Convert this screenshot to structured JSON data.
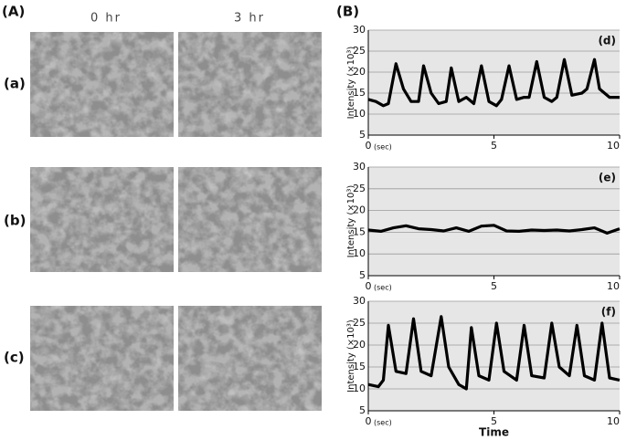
{
  "panel_a": {
    "label": "(A)",
    "columns": [
      "0 hr",
      "3 hr"
    ],
    "rows": [
      "(a)",
      "(b)",
      "(c)"
    ]
  },
  "panel_b_label": "(B)",
  "chart_data": [
    {
      "type": "line",
      "panel_label": "(d)",
      "ylabel": "Intensity (×10³)",
      "x_unit": "(sec)",
      "xlim": [
        0,
        10
      ],
      "xticks": [
        0,
        5,
        10
      ],
      "ylim": [
        5,
        30
      ],
      "yticks": [
        5,
        10,
        15,
        20,
        25,
        30
      ],
      "grid": true,
      "color": "#000000",
      "x": [
        0,
        0.3,
        0.6,
        0.8,
        1.1,
        1.4,
        1.7,
        2.0,
        2.2,
        2.5,
        2.8,
        3.1,
        3.3,
        3.6,
        3.9,
        4.2,
        4.5,
        4.8,
        5.1,
        5.3,
        5.6,
        5.9,
        6.2,
        6.4,
        6.7,
        7.0,
        7.3,
        7.5,
        7.8,
        8.1,
        8.5,
        8.7,
        9.0,
        9.2,
        9.6,
        10
      ],
      "values": [
        13.5,
        13,
        12,
        12.5,
        22,
        16,
        13,
        13,
        21.5,
        15,
        12.5,
        13,
        21,
        13,
        14,
        12.5,
        21.5,
        13,
        12,
        13.5,
        21.5,
        13.5,
        14,
        14,
        22.5,
        14,
        13,
        14,
        23,
        14.5,
        15,
        16,
        23,
        16,
        14,
        14
      ]
    },
    {
      "type": "line",
      "panel_label": "(e)",
      "ylabel": "Intensity (×10³)",
      "x_unit": "(sec)",
      "xlim": [
        0,
        10
      ],
      "xticks": [
        0,
        5,
        10
      ],
      "ylim": [
        5,
        30
      ],
      "yticks": [
        5,
        10,
        15,
        20,
        25,
        30
      ],
      "grid": true,
      "color": "#000000",
      "x": [
        0,
        0.5,
        1,
        1.5,
        2,
        2.5,
        3,
        3.5,
        4,
        4.5,
        5,
        5.5,
        6,
        6.5,
        7,
        7.5,
        8,
        8.5,
        9,
        9.5,
        10
      ],
      "values": [
        15.5,
        15.2,
        16,
        16.5,
        15.8,
        15.6,
        15.3,
        16,
        15.2,
        16.4,
        16.6,
        15.3,
        15.2,
        15.5,
        15.4,
        15.5,
        15.3,
        15.6,
        16,
        14.8,
        15.8
      ]
    },
    {
      "type": "line",
      "panel_label": "(f)",
      "ylabel": "Intensity (×10³)",
      "x_unit": "(sec)",
      "xlabel": "Time",
      "xlim": [
        0,
        10
      ],
      "xticks": [
        0,
        5,
        10
      ],
      "ylim": [
        5,
        30
      ],
      "yticks": [
        5,
        10,
        15,
        20,
        25,
        30
      ],
      "grid": true,
      "color": "#000000",
      "x": [
        0,
        0.4,
        0.6,
        0.8,
        1.1,
        1.5,
        1.8,
        2.1,
        2.5,
        2.9,
        3.2,
        3.6,
        3.9,
        4.1,
        4.4,
        4.8,
        5.1,
        5.4,
        5.9,
        6.2,
        6.5,
        7.0,
        7.3,
        7.6,
        8.0,
        8.3,
        8.6,
        9.0,
        9.3,
        9.6,
        10
      ],
      "values": [
        11,
        10.5,
        12,
        24.5,
        14,
        13.5,
        26,
        14,
        13,
        26.5,
        15,
        11,
        10,
        24,
        13,
        12,
        25,
        14,
        12,
        24.5,
        13,
        12.5,
        25,
        15,
        13,
        24.5,
        13,
        12,
        25,
        12.5,
        12
      ]
    }
  ]
}
